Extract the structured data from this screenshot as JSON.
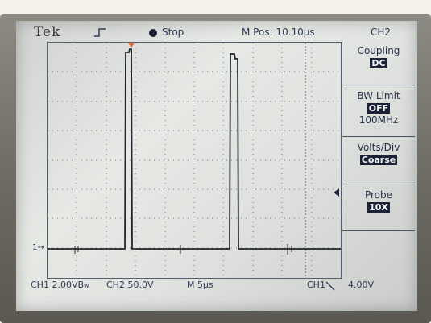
{
  "header": {
    "brand": "Tek",
    "run_state": "Stop",
    "m_pos": "M Pos: 10.10µs",
    "channel_tab": "CH2"
  },
  "menu": {
    "coupling": {
      "title": "Coupling",
      "value": "DC"
    },
    "bw_limit": {
      "title": "BW Limit",
      "value": "OFF",
      "sub": "100MHz"
    },
    "volts_div": {
      "title": "Volts/Div",
      "value": "Coarse"
    },
    "probe": {
      "title": "Probe",
      "value": "10X"
    }
  },
  "footer": {
    "ch1": "CH1  2.00VB",
    "ch1_suffix": "w",
    "ch2": "CH2  50.0V",
    "m": "M  5µs",
    "trig_src": "CH1",
    "trig_level": "4.00V"
  },
  "markers": {
    "ch1_ground": "1→"
  },
  "colors": {
    "trace": "#20242d",
    "trigger_marker": "#d7653c",
    "menu_highlight": "#1c2336"
  }
}
